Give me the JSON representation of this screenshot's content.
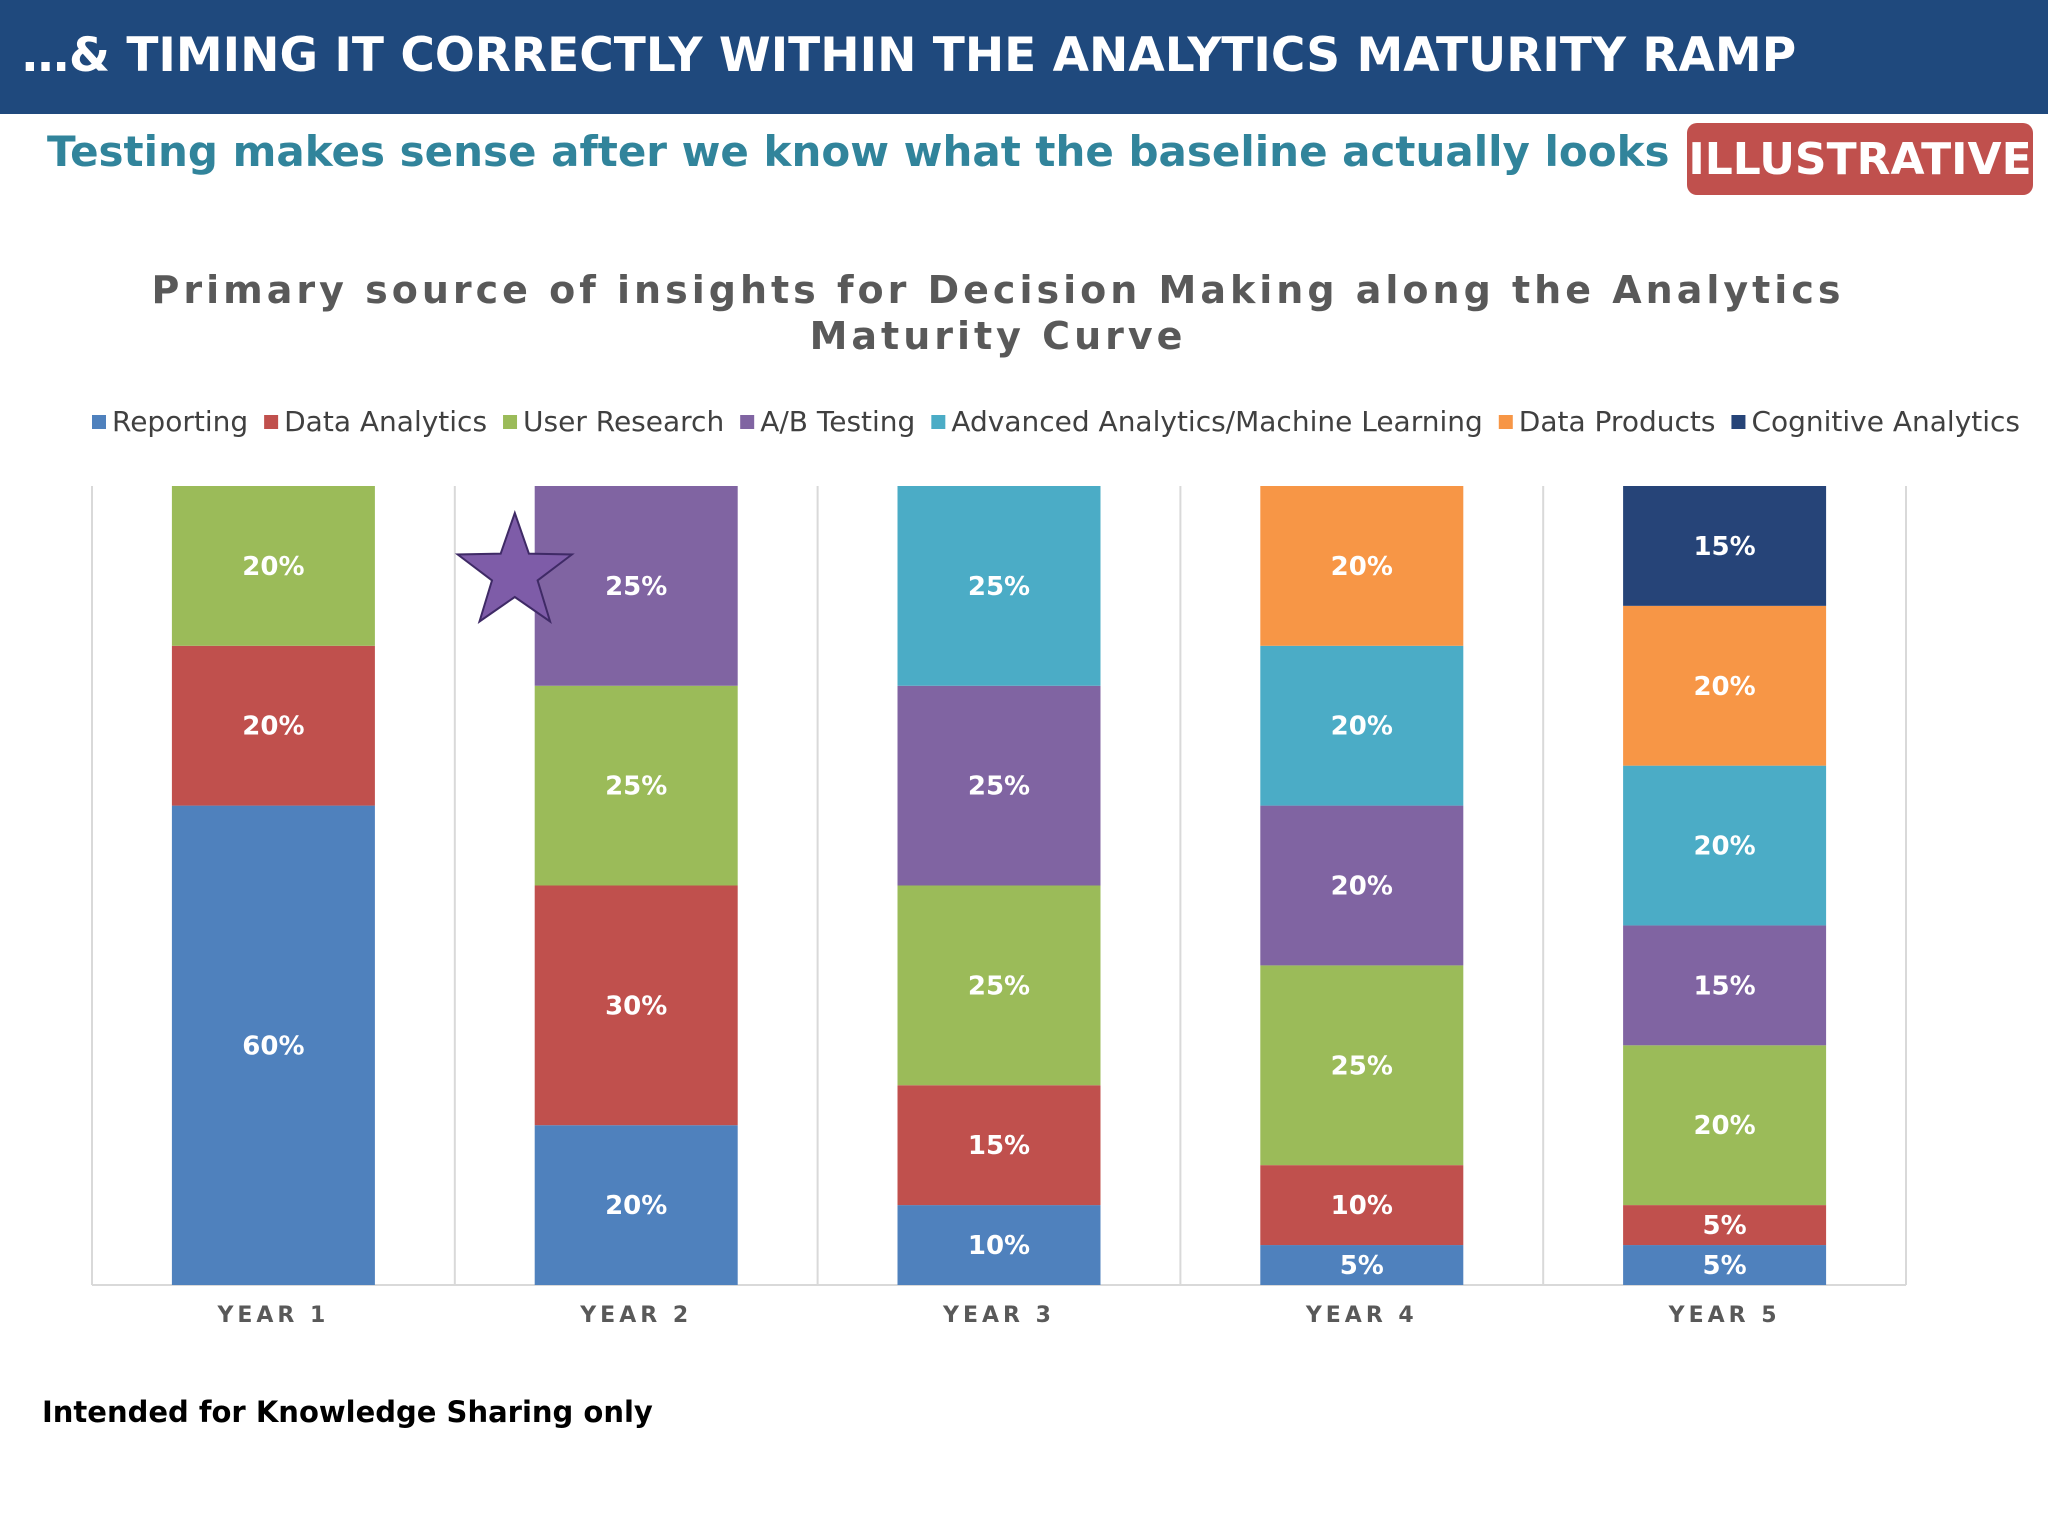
{
  "header": {
    "title": "…& TIMING IT CORRECTLY WITHIN THE ANALYTICS MATURITY RAMP",
    "subtitle": "Testing makes sense after we know what the baseline actually looks like…",
    "badge": "ILLUSTRATIVE"
  },
  "footer": {
    "note": "Intended for Knowledge Sharing only"
  },
  "annotation": {
    "star_icon": "star-icon",
    "star_color": "#7e5ca8",
    "star_category": "YEAR 2"
  },
  "chart_data": {
    "type": "bar",
    "stacked": true,
    "stack_mode": "percent",
    "title_lines": [
      "Primary source of insights for Decision Making along the Analytics",
      "Maturity Curve"
    ],
    "xlabel": "",
    "ylabel": "",
    "ylim": [
      0,
      100
    ],
    "grid": "vertical separators",
    "legend_position": "top",
    "categories": [
      "YEAR 1",
      "YEAR 2",
      "YEAR 3",
      "YEAR 4",
      "YEAR 5"
    ],
    "series": [
      {
        "name": "Reporting",
        "color": "#4f81bd",
        "values": [
          60,
          20,
          10,
          5,
          5
        ]
      },
      {
        "name": "Data Analytics",
        "color": "#c0504d",
        "values": [
          20,
          30,
          15,
          10,
          5
        ]
      },
      {
        "name": "User Research",
        "color": "#9bbb59",
        "values": [
          20,
          25,
          25,
          25,
          20
        ]
      },
      {
        "name": "A/B Testing",
        "color": "#8064a2",
        "values": [
          0,
          25,
          25,
          20,
          15
        ]
      },
      {
        "name": "Advanced Analytics/Machine Learning",
        "color": "#4bacc6",
        "values": [
          0,
          0,
          25,
          20,
          20
        ]
      },
      {
        "name": "Data Products",
        "color": "#f79646",
        "values": [
          0,
          0,
          0,
          20,
          20
        ]
      },
      {
        "name": "Cognitive Analytics",
        "color": "#264478",
        "values": [
          0,
          0,
          0,
          0,
          15
        ]
      }
    ],
    "data_labels": [
      [
        "60%",
        "20%",
        "10%",
        "5%",
        "5%"
      ],
      [
        "20%",
        "30%",
        "15%",
        "10%",
        "5%"
      ],
      [
        "20%",
        "25%",
        "25%",
        "25%",
        "20%"
      ],
      [
        "",
        "25%",
        "25%",
        "20%",
        "15%"
      ],
      [
        "",
        "",
        "25%",
        "20%",
        "20%"
      ],
      [
        "",
        "",
        "",
        "20%",
        "20%"
      ],
      [
        "",
        "",
        "",
        "",
        "15%"
      ]
    ]
  }
}
